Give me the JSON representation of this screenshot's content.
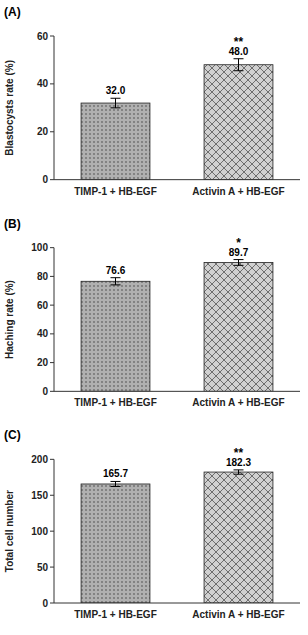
{
  "chart_data": [
    {
      "type": "bar",
      "title": "(A)",
      "categories": [
        "TIMP-1 + HB-EGF",
        "Activin A + HB-EGF"
      ],
      "values": [
        32.0,
        48.0
      ],
      "value_labels": [
        "32.0",
        "48.0"
      ],
      "errors": [
        2.0,
        2.5
      ],
      "ylabel": "Blastocysts rate (%)",
      "ylim": [
        0,
        60
      ],
      "yticks": [
        0,
        20,
        40,
        60
      ],
      "colors": [
        "#b0b0b0",
        "#d0d0d0"
      ],
      "data_labels": true,
      "grid": false,
      "annotations": [
        {
          "text": "**",
          "category": "Activin A + HB-EGF"
        }
      ]
    },
    {
      "type": "bar",
      "title": "(B)",
      "categories": [
        "TIMP-1 + HB-EGF",
        "Activin A + HB-EGF"
      ],
      "values": [
        76.6,
        89.7
      ],
      "value_labels": [
        "76.6",
        "89.7"
      ],
      "errors": [
        2.5,
        2.0
      ],
      "ylabel": "Haching rate (%)",
      "ylim": [
        0,
        100
      ],
      "yticks": [
        0,
        20,
        40,
        60,
        80,
        100
      ],
      "colors": [
        "#b0b0b0",
        "#d0d0d0"
      ],
      "data_labels": true,
      "grid": false,
      "annotations": [
        {
          "text": "*",
          "category": "Activin A + HB-EGF"
        }
      ]
    },
    {
      "type": "bar",
      "title": "(C)",
      "categories": [
        "TIMP-1 + HB-EGF",
        "Activin A + HB-EGF"
      ],
      "values": [
        165.7,
        182.3
      ],
      "value_labels": [
        "165.7",
        "182.3"
      ],
      "errors": [
        3.5,
        3.0
      ],
      "ylabel": "Total cell  number",
      "ylim": [
        0,
        200
      ],
      "yticks": [
        0,
        50,
        100,
        150,
        200
      ],
      "colors": [
        "#b0b0b0",
        "#d0d0d0"
      ],
      "data_labels": true,
      "grid": false,
      "annotations": [
        {
          "text": "**",
          "category": "Activin A + HB-EGF"
        }
      ]
    }
  ]
}
